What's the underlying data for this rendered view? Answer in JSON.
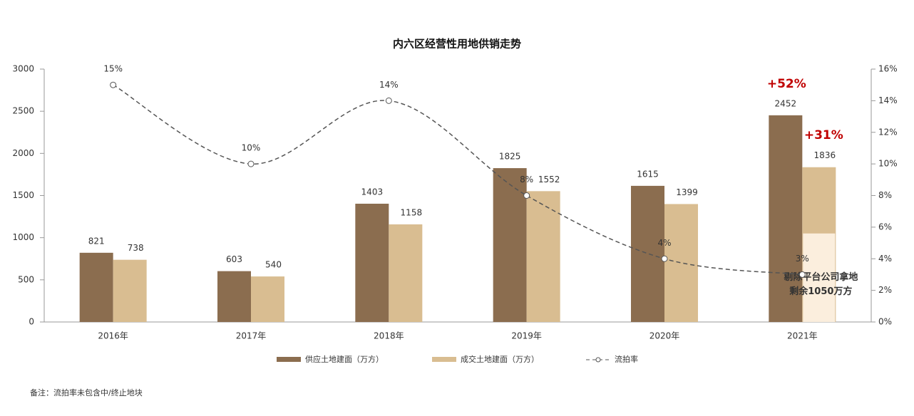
{
  "chart_data": {
    "type": "bar",
    "title": "内六区经营性用地供销走势",
    "categories": [
      "2016年",
      "2017年",
      "2018年",
      "2019年",
      "2020年",
      "2021年"
    ],
    "series": [
      {
        "name": "供应土地建面（万方）",
        "color": "#8b6d4f",
        "values": [
          821,
          603,
          1403,
          1825,
          1615,
          2452
        ]
      },
      {
        "name": "成交土地建面（万方）",
        "color": "#d9bd91",
        "values": [
          738,
          540,
          1158,
          1552,
          1399,
          1836
        ]
      },
      {
        "name": "流拍率",
        "color": "#555555",
        "type": "line",
        "axis": "y2",
        "values": [
          15,
          10,
          14,
          8,
          4,
          3
        ],
        "value_labels": [
          "15%",
          "10%",
          "14%",
          "8%",
          "4%",
          "3%"
        ]
      }
    ],
    "ylim": [
      0,
      3000
    ],
    "yticks": [
      0,
      500,
      1000,
      1500,
      2000,
      2500,
      3000
    ],
    "y2lim": [
      0,
      16
    ],
    "y2ticks": [
      {
        "value": 0,
        "label": "0%"
      },
      {
        "value": 2,
        "label": "2%"
      },
      {
        "value": 4,
        "label": "4%"
      },
      {
        "value": 6,
        "label": "6%"
      },
      {
        "value": 8,
        "label": "8%"
      },
      {
        "value": 10,
        "label": "10%"
      },
      {
        "value": 12,
        "label": "12%"
      },
      {
        "value": 14,
        "label": "14%"
      },
      {
        "value": 16,
        "label": "16%"
      }
    ],
    "annotations": [
      "+52%",
      "+31%"
    ],
    "inset": {
      "value": 1050,
      "color": "#fbeedd",
      "label": "剔除平台公司拿地剩余1050万方"
    },
    "note": "备注：流拍率未包含中/终止地块",
    "legend": "bottom"
  }
}
